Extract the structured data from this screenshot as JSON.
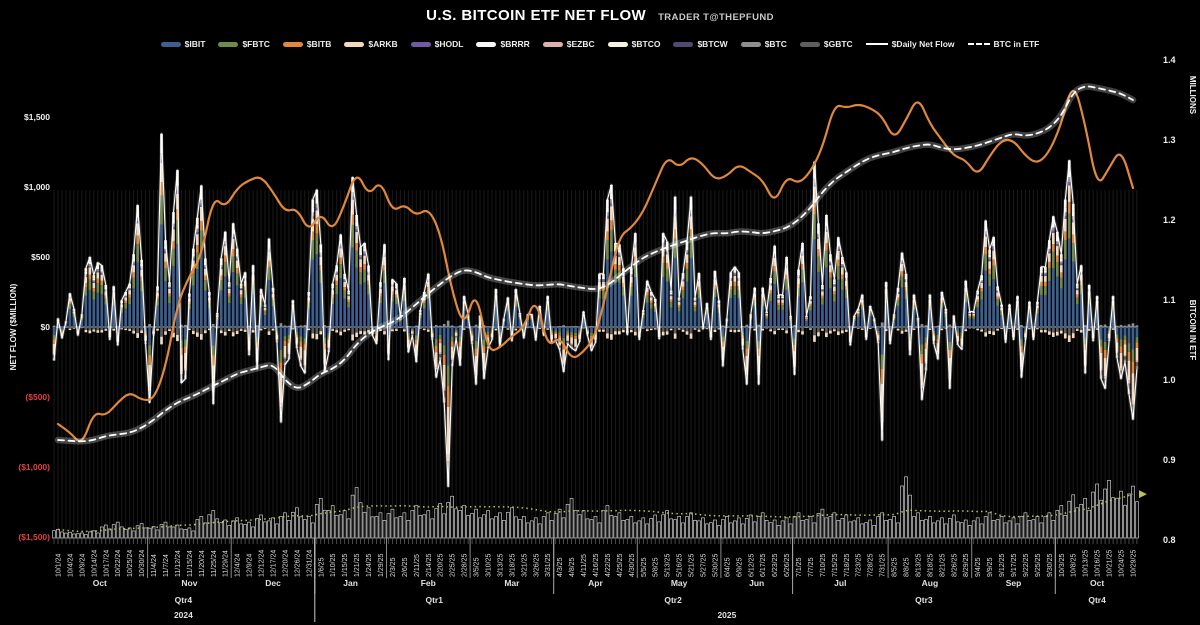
{
  "header": {
    "title": "U.S. BITCOIN ETF NET FLOW",
    "subtitle": "TRADER T@THEPFUND"
  },
  "legend": {
    "items": [
      {
        "key": "ibit",
        "label": "$IBIT",
        "kind": "bar",
        "color": "#3d5f8e"
      },
      {
        "key": "fbtc",
        "label": "$FBTC",
        "kind": "bar",
        "color": "#70894d"
      },
      {
        "key": "bitb",
        "label": "$BITB",
        "kind": "bar",
        "color": "#e0883c"
      },
      {
        "key": "arkb",
        "label": "$ARKB",
        "kind": "bar",
        "color": "#f3d9bd"
      },
      {
        "key": "hodl",
        "label": "$HODL",
        "kind": "bar",
        "color": "#6f5ba2"
      },
      {
        "key": "brrr",
        "label": "$BRRR",
        "kind": "bar",
        "color": "#f7f7f7"
      },
      {
        "key": "ezbc",
        "label": "$EZBC",
        "kind": "bar",
        "color": "#dfb0ab"
      },
      {
        "key": "btco",
        "label": "$BTCO",
        "kind": "bar",
        "color": "#f3f1df"
      },
      {
        "key": "btcw",
        "label": "$BTCW",
        "kind": "bar",
        "color": "#4f4a6e"
      },
      {
        "key": "btc",
        "label": "$BTC",
        "kind": "bar",
        "color": "#8f8f8f"
      },
      {
        "key": "gbtc",
        "label": "$GBTC",
        "kind": "bar",
        "color": "#5e5e5e"
      },
      {
        "key": "daily",
        "label": "$Daily Net Flow",
        "kind": "line",
        "color": "#ffffff"
      },
      {
        "key": "btcetf",
        "label": "BTC in ETF",
        "kind": "dash",
        "color": "#ffffff"
      }
    ]
  },
  "axes": {
    "left": {
      "title": "NET FLOW ($MILLION)",
      "ticks": [
        {
          "label": "$1,500",
          "value": 1500
        },
        {
          "label": "$1,000",
          "value": 1000
        },
        {
          "label": "$500",
          "value": 500
        },
        {
          "label": "$0",
          "value": 0
        },
        {
          "label": "($500)",
          "value": -500
        },
        {
          "label": "($1,000)",
          "value": -1000
        },
        {
          "label": "($1,500)",
          "value": -1500
        }
      ],
      "negative_color": "#e04040",
      "positive_color": "#f0f0f0"
    },
    "right": {
      "units_title": "MILLIONS",
      "title": "BITCOIN IN ETF",
      "ticks": [
        {
          "label": "1.4",
          "value": 1.4
        },
        {
          "label": "1.3",
          "value": 1.3
        },
        {
          "label": "1.2",
          "value": 1.2
        },
        {
          "label": "1.1",
          "value": 1.1
        },
        {
          "label": "1.0",
          "value": 1.0
        },
        {
          "label": "0.9",
          "value": 0.9
        },
        {
          "label": "0.8",
          "value": 0.8
        }
      ]
    }
  },
  "x_axis": {
    "date_labels": [
      "10/1/24",
      "10/4/24",
      "10/9/24",
      "10/14/24",
      "10/17/24",
      "10/22/24",
      "10/25/24",
      "10/30/24",
      "11/4/24",
      "11/7/24",
      "11/12/24",
      "11/15/24",
      "11/20/24",
      "11/25/24",
      "11/29/24",
      "12/4/24",
      "12/9/24",
      "12/12/24",
      "12/17/24",
      "12/20/24",
      "12/26/24",
      "12/31/24",
      "1/6/25",
      "1/10/25",
      "1/15/25",
      "1/21/25",
      "1/24/25",
      "1/29/25",
      "2/3/25",
      "2/6/25",
      "2/11/25",
      "2/14/25",
      "2/20/25",
      "2/25/25",
      "2/28/25",
      "3/5/25",
      "3/10/25",
      "3/13/25",
      "3/18/25",
      "3/21/25",
      "3/26/25",
      "3/31/25",
      "4/3/25",
      "4/8/25",
      "4/11/25",
      "4/16/25",
      "4/22/25",
      "4/25/25",
      "4/30/25",
      "5/5/25",
      "5/8/25",
      "5/13/25",
      "5/16/25",
      "5/21/25",
      "5/27/25",
      "5/30/25",
      "6/4/25",
      "6/9/25",
      "6/12/25",
      "6/17/25",
      "6/23/25",
      "6/26/25",
      "7/1/25",
      "7/7/25",
      "7/10/25",
      "7/15/25",
      "7/18/25",
      "7/23/25",
      "7/28/25",
      "7/31/25",
      "8/5/25",
      "8/8/25",
      "8/13/25",
      "8/18/25",
      "8/21/25",
      "8/26/25",
      "8/29/25",
      "9/4/25",
      "9/9/25",
      "9/12/25",
      "9/17/25",
      "9/22/25",
      "9/25/25",
      "9/30/25",
      "10/3/25",
      "10/8/25",
      "10/13/25",
      "10/16/25",
      "10/21/25",
      "10/24/25",
      "10/29/25"
    ],
    "months": [
      {
        "label": "Oct",
        "start": 0,
        "end": 7
      },
      {
        "label": "Nov",
        "start": 8,
        "end": 14
      },
      {
        "label": "Dec",
        "start": 15,
        "end": 21
      },
      {
        "label": "Jan",
        "start": 22,
        "end": 27
      },
      {
        "label": "Feb",
        "start": 28,
        "end": 34
      },
      {
        "label": "Mar",
        "start": 35,
        "end": 41
      },
      {
        "label": "Apr",
        "start": 42,
        "end": 48
      },
      {
        "label": "May",
        "start": 49,
        "end": 55
      },
      {
        "label": "Jun",
        "start": 56,
        "end": 61
      },
      {
        "label": "Jul",
        "start": 62,
        "end": 69
      },
      {
        "label": "Aug",
        "start": 70,
        "end": 76
      },
      {
        "label": "Sep",
        "start": 77,
        "end": 83
      },
      {
        "label": "Oct",
        "start": 84,
        "end": 90
      }
    ],
    "quarters": [
      {
        "label": "Qtr4",
        "start": 0,
        "end": 21
      },
      {
        "label": "Qtr1",
        "start": 22,
        "end": 41
      },
      {
        "label": "Qtr2",
        "start": 42,
        "end": 61
      },
      {
        "label": "Qtr3",
        "start": 62,
        "end": 83
      },
      {
        "label": "Qtr4",
        "start": 84,
        "end": 90
      }
    ],
    "years": [
      {
        "label": "2024",
        "start": 0,
        "end": 21
      },
      {
        "label": "2025",
        "start": 22,
        "end": 90
      }
    ]
  },
  "chart_data": {
    "type": "combo: stacked daily net-flow bars + daily net flow line (left axis, $M) + BTC-in-ETF dashed line and BTC price overlay (right axis, millions) + volume histogram with dotted moving-average",
    "title": "U.S. BITCOIN ETF NET FLOW",
    "bars_per_label": 3,
    "left_axis_range": [
      -1500,
      1500
    ],
    "right_axis_range": [
      0.8,
      1.4
    ],
    "grid": "vertical per-bar only",
    "legend_position": "top",
    "series": {
      "net_flow_daily_musd": [
        -240,
        60,
        -80,
        40,
        240,
        130,
        -60,
        90,
        420,
        500,
        370,
        460,
        440,
        300,
        -90,
        290,
        -130,
        190,
        250,
        310,
        520,
        870,
        480,
        -120,
        -540,
        -60,
        290,
        1380,
        620,
        320,
        820,
        1120,
        -400,
        -370,
        240,
        560,
        780,
        1010,
        490,
        250,
        -550,
        100,
        490,
        680,
        320,
        740,
        560,
        310,
        390,
        -200,
        440,
        -300,
        270,
        160,
        630,
        280,
        -110,
        -680,
        -270,
        -230,
        190,
        -150,
        -280,
        -330,
        250,
        910,
        980,
        590,
        -320,
        -180,
        310,
        440,
        660,
        380,
        260,
        1070,
        800,
        570,
        600,
        440,
        -60,
        -120,
        320,
        590,
        -235,
        340,
        310,
        70,
        350,
        -180,
        -60,
        -250,
        120,
        250,
        380,
        -90,
        -360,
        -230,
        -540,
        -1140,
        -280,
        -80,
        -275,
        220,
        90,
        -120,
        -410,
        80,
        -370,
        -150,
        -90,
        270,
        -140,
        60,
        210,
        -100,
        270,
        100,
        -80,
        90,
        90,
        -95,
        150,
        -60,
        220,
        -110,
        -100,
        -160,
        -320,
        -120,
        -150,
        -170,
        -105,
        110,
        -60,
        -170,
        -110,
        380,
        380,
        910,
        1015,
        600,
        590,
        420,
        -55,
        420,
        670,
        -90,
        120,
        330,
        250,
        200,
        -85,
        670,
        610,
        260,
        930,
        210,
        385,
        610,
        930,
        210,
        385,
        -15,
        170,
        -90,
        400,
        190,
        -280,
        60,
        390,
        430,
        390,
        -160,
        -410,
        90,
        280,
        -410,
        280,
        110,
        350,
        580,
        230,
        230,
        500,
        80,
        -340,
        410,
        600,
        80,
        220,
        1180,
        740,
        300,
        800,
        520,
        340,
        640,
        500,
        390,
        -130,
        80,
        130,
        230,
        -90,
        150,
        60,
        -115,
        -810,
        320,
        -120,
        90,
        280,
        530,
        380,
        -200,
        230,
        65,
        -520,
        -310,
        230,
        -120,
        -230,
        250,
        130,
        -440,
        81,
        -127,
        -160,
        330,
        110,
        110,
        260,
        370,
        760,
        553,
        642,
        290,
        160,
        -110,
        160,
        -90,
        220,
        -360,
        -90,
        180,
        -90,
        180,
        430,
        430,
        620,
        790,
        680,
        520,
        910,
        1190,
        880,
        310,
        440,
        -330,
        300,
        -100,
        220,
        -370,
        -440,
        -100,
        220,
        -220,
        -370,
        -250,
        -480,
        -660,
        -300
      ],
      "btc_in_etf_millions": [
        0.925,
        0.924,
        0.923,
        0.925,
        0.93,
        0.932,
        0.934,
        0.94,
        0.95,
        0.962,
        0.972,
        0.978,
        0.985,
        0.993,
        1.0,
        1.008,
        1.012,
        1.016,
        1.02,
        1.0,
        0.988,
        0.996,
        1.008,
        1.014,
        1.025,
        1.045,
        1.058,
        1.066,
        1.072,
        1.082,
        1.095,
        1.108,
        1.12,
        1.131,
        1.138,
        1.135,
        1.128,
        1.125,
        1.122,
        1.12,
        1.118,
        1.119,
        1.12,
        1.117,
        1.115,
        1.113,
        1.118,
        1.13,
        1.142,
        1.153,
        1.16,
        1.166,
        1.171,
        1.176,
        1.181,
        1.184,
        1.183,
        1.186,
        1.185,
        1.183,
        1.186,
        1.19,
        1.2,
        1.215,
        1.235,
        1.25,
        1.26,
        1.27,
        1.278,
        1.282,
        1.285,
        1.29,
        1.293,
        1.295,
        1.29,
        1.288,
        1.29,
        1.293,
        1.298,
        1.303,
        1.308,
        1.305,
        1.308,
        1.315,
        1.33,
        1.36,
        1.368,
        1.365,
        1.362,
        1.358,
        1.35
      ],
      "btc_price_overlay_right_axis": [
        0.945,
        0.935,
        0.918,
        0.96,
        0.955,
        0.972,
        0.985,
        0.975,
        0.975,
        1.015,
        1.095,
        1.13,
        1.155,
        1.23,
        1.215,
        1.24,
        1.25,
        1.255,
        1.235,
        1.21,
        1.215,
        1.185,
        1.21,
        1.185,
        1.22,
        1.262,
        1.23,
        1.25,
        1.21,
        1.22,
        1.205,
        1.215,
        1.185,
        1.11,
        1.065,
        1.115,
        1.035,
        1.04,
        1.055,
        1.065,
        1.105,
        1.04,
        1.055,
        1.025,
        1.035,
        1.055,
        1.115,
        1.18,
        1.19,
        1.21,
        1.245,
        1.28,
        1.265,
        1.28,
        1.27,
        1.25,
        1.255,
        1.27,
        1.26,
        1.25,
        1.22,
        1.255,
        1.245,
        1.26,
        1.29,
        1.345,
        1.34,
        1.345,
        1.34,
        1.33,
        1.3,
        1.325,
        1.355,
        1.32,
        1.3,
        1.28,
        1.275,
        1.255,
        1.28,
        1.3,
        1.3,
        1.28,
        1.27,
        1.285,
        1.32,
        1.375,
        1.32,
        1.24,
        1.265,
        1.29,
        1.24
      ],
      "volume_relative": [
        12,
        8,
        7,
        10,
        18,
        22,
        14,
        20,
        16,
        22,
        18,
        14,
        30,
        38,
        25,
        28,
        22,
        32,
        28,
        35,
        42,
        30,
        55,
        45,
        38,
        70,
        42,
        35,
        40,
        35,
        45,
        38,
        48,
        58,
        45,
        40,
        38,
        35,
        42,
        30,
        28,
        35,
        40,
        55,
        38,
        30,
        45,
        35,
        30,
        28,
        32,
        38,
        30,
        35,
        28,
        25,
        30,
        28,
        32,
        35,
        25,
        28,
        35,
        30,
        40,
        35,
        32,
        28,
        25,
        35,
        30,
        85,
        35,
        30,
        28,
        32,
        25,
        28,
        35,
        30,
        28,
        35,
        30,
        35,
        45,
        60,
        55,
        75,
        80,
        65,
        72
      ],
      "volume_jitter": [
        0.85,
        1.0,
        0.7
      ],
      "volume_ma_window": 8
    },
    "stack_profile_positive": [
      [
        "ibit",
        0.53
      ],
      [
        "fbtc",
        0.15
      ],
      [
        "bitb",
        0.07
      ],
      [
        "arkb",
        0.1
      ],
      [
        "hodl",
        0.02
      ],
      [
        "btc",
        0.03
      ],
      [
        "brrr",
        0.04
      ],
      [
        "btco",
        0.06
      ]
    ],
    "stack_profile_positive_below_axis": [
      [
        "gbtc",
        0.05
      ],
      [
        "arkb",
        0.04
      ]
    ],
    "stack_profile_negative": [
      [
        "ibit",
        0.24
      ],
      [
        "fbtc",
        0.13
      ],
      [
        "bitb",
        0.13
      ],
      [
        "arkb",
        0.3
      ],
      [
        "ezbc",
        0.04
      ],
      [
        "gbtc",
        0.09
      ],
      [
        "btc",
        0.07
      ]
    ],
    "stack_profile_negative_above_axis": [
      [
        "btc",
        0.04
      ]
    ]
  },
  "colors": {
    "background": "#000000",
    "ibit": "#3d5f8e",
    "fbtc": "#70894d",
    "bitb": "#e0883c",
    "arkb": "#f3d9bd",
    "hodl": "#6f5ba2",
    "brrr": "#f7f7f7",
    "ezbc": "#dfb0ab",
    "btco": "#f3f1df",
    "btcw": "#4f4a6e",
    "btc": "#8f8f8f",
    "gbtc": "#5e5e5e",
    "daily_net_flow_line": "#ffffff",
    "btc_in_etf_line": "#ffffff",
    "price_line": "#e0883c",
    "volume_outline": "#c9c9c9",
    "volume_ma_dotted": "#b9c05e",
    "gridline": "#1a1a1a",
    "zero_line": "#c8c8c8",
    "axis_text": "#f0f0f0",
    "date_text": "#dcdcdc",
    "negative_tick": "#e04040",
    "separator": "#aaaaaa"
  }
}
